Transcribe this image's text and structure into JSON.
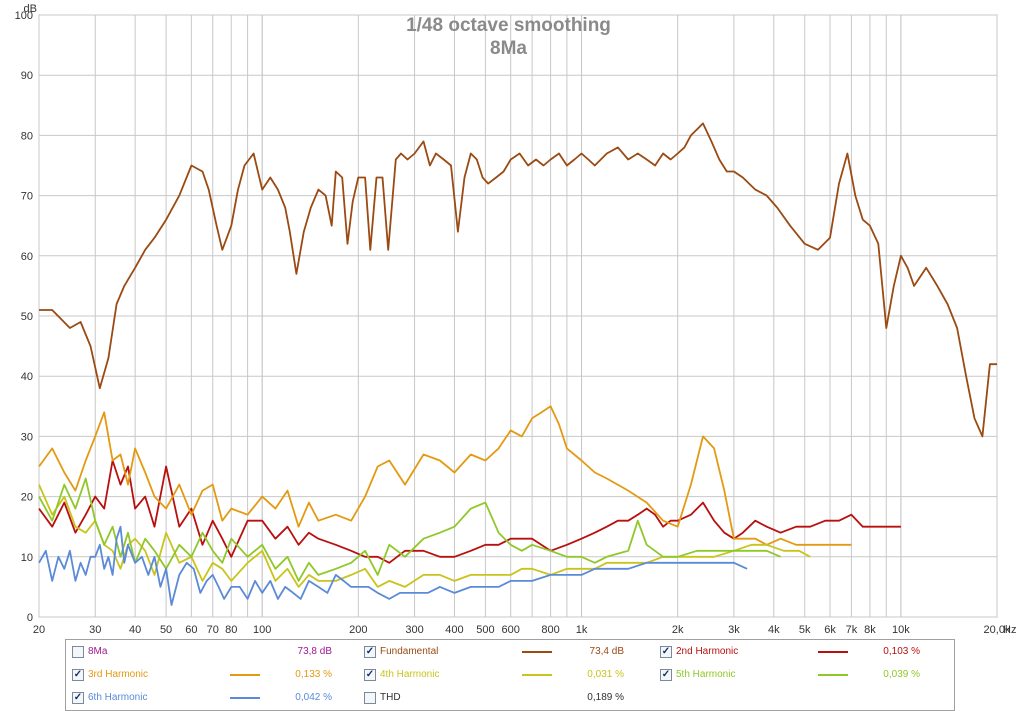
{
  "title": "1/48 octave smoothing",
  "subtitle": "8Ma",
  "chart_data": {
    "type": "line",
    "title": "1/48 octave smoothing",
    "subtitle": "8Ma",
    "xlabel": "Hz",
    "ylabel": "dB",
    "xscale": "log",
    "xlim": [
      20,
      20000
    ],
    "ylim": [
      0,
      100
    ],
    "grid": true,
    "y_ticks": [
      0,
      10,
      20,
      30,
      40,
      50,
      60,
      70,
      80,
      90,
      100
    ],
    "x_ticks": [
      {
        "v": 20,
        "label": "20"
      },
      {
        "v": 30,
        "label": "30"
      },
      {
        "v": 40,
        "label": "40"
      },
      {
        "v": 50,
        "label": "50"
      },
      {
        "v": 60,
        "label": "60"
      },
      {
        "v": 70,
        "label": "70"
      },
      {
        "v": 80,
        "label": "80"
      },
      {
        "v": 100,
        "label": "100"
      },
      {
        "v": 200,
        "label": "200"
      },
      {
        "v": 300,
        "label": "300"
      },
      {
        "v": 400,
        "label": "400"
      },
      {
        "v": 500,
        "label": "500"
      },
      {
        "v": 600,
        "label": "600"
      },
      {
        "v": 800,
        "label": "800"
      },
      {
        "v": 1000,
        "label": "1k"
      },
      {
        "v": 2000,
        "label": "2k"
      },
      {
        "v": 3000,
        "label": "3k"
      },
      {
        "v": 4000,
        "label": "4k"
      },
      {
        "v": 5000,
        "label": "5k"
      },
      {
        "v": 6000,
        "label": "6k"
      },
      {
        "v": 7000,
        "label": "7k"
      },
      {
        "v": 8000,
        "label": "8k"
      },
      {
        "v": 10000,
        "label": "10k"
      },
      {
        "v": 20000,
        "label": "20,0k"
      }
    ],
    "series": [
      {
        "name": "Fundamental",
        "color": "#9a4a12",
        "x": [
          20,
          22,
          25,
          27,
          29,
          31,
          33,
          35,
          37,
          40,
          43,
          46,
          50,
          55,
          60,
          65,
          68,
          72,
          75,
          80,
          84,
          88,
          94,
          100,
          106,
          112,
          118,
          122,
          128,
          135,
          142,
          150,
          158,
          165,
          170,
          178,
          185,
          192,
          200,
          210,
          218,
          228,
          238,
          248,
          262,
          272,
          285,
          300,
          310,
          320,
          335,
          350,
          370,
          390,
          410,
          430,
          450,
          470,
          490,
          510,
          540,
          570,
          600,
          640,
          680,
          720,
          760,
          800,
          850,
          900,
          950,
          1000,
          1050,
          1100,
          1200,
          1300,
          1400,
          1500,
          1600,
          1700,
          1800,
          1900,
          2000,
          2100,
          2200,
          2300,
          2400,
          2550,
          2700,
          2850,
          3000,
          3200,
          3500,
          3800,
          4100,
          4500,
          5000,
          5500,
          6000,
          6400,
          6800,
          7200,
          7600,
          8000,
          8500,
          9000,
          9500,
          10000,
          10500,
          11000,
          12000,
          13000,
          14000,
          15000,
          16000,
          17000,
          18000,
          19000,
          20000
        ],
        "y": [
          51,
          51,
          48,
          49,
          45,
          38,
          43,
          52,
          55,
          58,
          61,
          63,
          66,
          70,
          75,
          74,
          71,
          65,
          61,
          65,
          71,
          75,
          77,
          71,
          73,
          71,
          68,
          64,
          57,
          64,
          68,
          71,
          70,
          65,
          74,
          73,
          62,
          69,
          73,
          73,
          61,
          73,
          73,
          61,
          76,
          77,
          76,
          77,
          78,
          79,
          75,
          77,
          76,
          75,
          64,
          73,
          77,
          76,
          73,
          72,
          73,
          74,
          76,
          77,
          75,
          76,
          75,
          76,
          77,
          75,
          76,
          77,
          76,
          75,
          77,
          78,
          76,
          77,
          76,
          75,
          77,
          76,
          77,
          78,
          80,
          81,
          82,
          79,
          76,
          74,
          74,
          73,
          71,
          70,
          68,
          65,
          62,
          61,
          63,
          72,
          77,
          70,
          66,
          65,
          62,
          48,
          55,
          60,
          58,
          55,
          58,
          55,
          52,
          48,
          40,
          33,
          30,
          42,
          42
        ]
      },
      {
        "name": "2nd Harmonic",
        "color": "#b80f0f",
        "x": [
          20,
          22,
          24,
          26,
          28,
          30,
          32,
          34,
          36,
          38,
          40,
          43,
          46,
          50,
          55,
          60,
          65,
          70,
          75,
          80,
          90,
          100,
          110,
          120,
          130,
          140,
          150,
          170,
          190,
          210,
          230,
          250,
          280,
          320,
          360,
          400,
          450,
          500,
          550,
          600,
          650,
          700,
          800,
          900,
          1000,
          1100,
          1200,
          1300,
          1400,
          1500,
          1600,
          1700,
          1800,
          1900,
          2000,
          2200,
          2400,
          2600,
          2800,
          3000,
          3200,
          3500,
          3800,
          4200,
          4700,
          5200,
          5800,
          6400,
          7000,
          7600,
          8400,
          9200,
          10000
        ],
        "y": [
          18,
          15,
          19,
          14,
          17,
          20,
          18,
          26,
          22,
          25,
          18,
          20,
          15,
          25,
          15,
          18,
          12,
          16,
          13,
          10,
          16,
          16,
          13,
          15,
          12,
          14,
          13,
          12,
          11,
          10,
          10,
          9,
          11,
          11,
          10,
          10,
          11,
          12,
          12,
          13,
          13,
          13,
          11,
          12,
          13,
          14,
          15,
          16,
          16,
          17,
          18,
          17,
          15,
          16,
          16,
          17,
          19,
          16,
          14,
          13,
          14,
          16,
          15,
          14,
          15,
          15,
          16,
          16,
          17,
          15,
          15,
          15,
          15
        ]
      },
      {
        "name": "3rd Harmonic",
        "color": "#e39a12",
        "x": [
          20,
          22,
          24,
          26,
          28,
          30,
          32,
          34,
          36,
          38,
          40,
          43,
          46,
          50,
          55,
          60,
          65,
          70,
          75,
          80,
          90,
          100,
          110,
          120,
          130,
          140,
          150,
          170,
          190,
          210,
          230,
          250,
          280,
          320,
          360,
          400,
          450,
          500,
          550,
          600,
          650,
          700,
          750,
          800,
          850,
          900,
          1000,
          1100,
          1200,
          1400,
          1600,
          1800,
          2000,
          2200,
          2400,
          2600,
          2800,
          3000,
          3200,
          3500,
          3800,
          4200,
          4700,
          5200,
          5800,
          6400,
          7000
        ],
        "y": [
          25,
          28,
          24,
          21,
          26,
          30,
          34,
          26,
          27,
          22,
          28,
          24,
          20,
          18,
          22,
          17,
          21,
          22,
          16,
          18,
          17,
          20,
          18,
          21,
          15,
          19,
          16,
          17,
          16,
          20,
          25,
          26,
          22,
          27,
          26,
          24,
          27,
          26,
          28,
          31,
          30,
          33,
          34,
          35,
          32,
          28,
          26,
          24,
          23,
          21,
          19,
          16,
          15,
          22,
          30,
          28,
          21,
          13,
          13,
          13,
          12,
          13,
          12,
          12,
          12,
          12,
          12
        ]
      },
      {
        "name": "4th Harmonic",
        "color": "#c8c41c",
        "x": [
          20,
          22,
          24,
          26,
          28,
          30,
          32,
          34,
          36,
          38,
          40,
          43,
          46,
          50,
          55,
          60,
          65,
          70,
          75,
          80,
          90,
          100,
          110,
          120,
          130,
          140,
          150,
          170,
          190,
          210,
          230,
          250,
          280,
          320,
          360,
          400,
          450,
          500,
          550,
          600,
          650,
          700,
          800,
          900,
          1000,
          1100,
          1200,
          1400,
          1600,
          1800,
          2000,
          2300,
          2600,
          3000,
          3400,
          3800,
          4300,
          4800,
          5200
        ],
        "y": [
          22,
          17,
          20,
          15,
          14,
          16,
          12,
          11,
          8,
          12,
          13,
          11,
          7,
          14,
          9,
          10,
          6,
          9,
          8,
          6,
          9,
          11,
          6,
          8,
          5,
          7,
          6,
          6,
          7,
          8,
          5,
          6,
          5,
          7,
          7,
          6,
          7,
          7,
          7,
          7,
          8,
          8,
          7,
          8,
          8,
          8,
          9,
          9,
          9,
          10,
          10,
          10,
          10,
          11,
          12,
          12,
          11,
          11,
          10
        ]
      },
      {
        "name": "5th Harmonic",
        "color": "#8fc828",
        "x": [
          20,
          22,
          24,
          26,
          28,
          30,
          32,
          34,
          36,
          38,
          40,
          43,
          46,
          50,
          55,
          60,
          65,
          70,
          75,
          80,
          90,
          100,
          110,
          120,
          130,
          140,
          150,
          170,
          190,
          210,
          230,
          250,
          280,
          320,
          360,
          400,
          450,
          500,
          550,
          600,
          650,
          700,
          800,
          900,
          1000,
          1100,
          1200,
          1400,
          1500,
          1600,
          1800,
          2000,
          2300,
          2600,
          3000,
          3400,
          3800,
          4200
        ],
        "y": [
          20,
          16,
          22,
          18,
          23,
          16,
          12,
          15,
          10,
          14,
          9,
          13,
          11,
          8,
          12,
          10,
          14,
          11,
          9,
          13,
          10,
          12,
          8,
          10,
          6,
          9,
          7,
          8,
          9,
          11,
          7,
          12,
          10,
          13,
          14,
          15,
          18,
          19,
          14,
          12,
          11,
          12,
          11,
          10,
          10,
          9,
          10,
          11,
          16,
          12,
          10,
          10,
          11,
          11,
          11,
          11,
          11,
          10
        ]
      },
      {
        "name": "6th Harmonic",
        "color": "#5a8ad8",
        "x": [
          20,
          21,
          22,
          23,
          24,
          25,
          26,
          27,
          28,
          29,
          30,
          31,
          32,
          33,
          34,
          35,
          36,
          37,
          38,
          40,
          42,
          44,
          46,
          48,
          50,
          52,
          55,
          58,
          61,
          64,
          67,
          70,
          73,
          76,
          80,
          85,
          90,
          95,
          100,
          106,
          112,
          118,
          125,
          132,
          140,
          150,
          160,
          170,
          180,
          190,
          200,
          215,
          230,
          250,
          270,
          300,
          330,
          360,
          400,
          450,
          500,
          550,
          600,
          650,
          700,
          800,
          900,
          1000,
          1100,
          1200,
          1400,
          1600,
          1800,
          2000,
          2300,
          2600,
          3000,
          3300
        ],
        "y": [
          9,
          11,
          6,
          10,
          8,
          11,
          6,
          9,
          7,
          10,
          10,
          12,
          8,
          10,
          7,
          13,
          15,
          9,
          12,
          9,
          10,
          7,
          10,
          5,
          8,
          2,
          7,
          9,
          8,
          4,
          6,
          7,
          5,
          3,
          5,
          5,
          3,
          6,
          4,
          6,
          3,
          5,
          4,
          3,
          6,
          5,
          4,
          7,
          6,
          5,
          5,
          5,
          4,
          3,
          4,
          4,
          4,
          5,
          4,
          5,
          5,
          5,
          6,
          6,
          6,
          7,
          7,
          7,
          8,
          8,
          8,
          9,
          9,
          9,
          9,
          9,
          9,
          8
        ]
      }
    ]
  },
  "legend": {
    "rows": [
      [
        {
          "name": "8Ma",
          "value": "73,8 dB",
          "color": "#a01890",
          "checked": false,
          "show_line": false
        },
        {
          "name": "Fundamental",
          "value": "73,4 dB",
          "color": "#9a4a12",
          "checked": true,
          "show_line": true
        },
        {
          "name": "2nd Harmonic",
          "value": "0,103 %",
          "color": "#b80f0f",
          "checked": true,
          "show_line": true
        }
      ],
      [
        {
          "name": "3rd Harmonic",
          "value": "0,133 %",
          "color": "#e39a12",
          "checked": true,
          "show_line": true
        },
        {
          "name": "4th Harmonic",
          "value": "0,031 %",
          "color": "#c8c41c",
          "checked": true,
          "show_line": true
        },
        {
          "name": "5th Harmonic",
          "value": "0,039 %",
          "color": "#8fc828",
          "checked": true,
          "show_line": true
        }
      ],
      [
        {
          "name": "6th Harmonic",
          "value": "0,042 %",
          "color": "#5a8ad8",
          "checked": true,
          "show_line": true
        },
        {
          "name": "THD",
          "value": "0,189 %",
          "color": "#303030",
          "checked": false,
          "show_line": false
        }
      ]
    ]
  }
}
